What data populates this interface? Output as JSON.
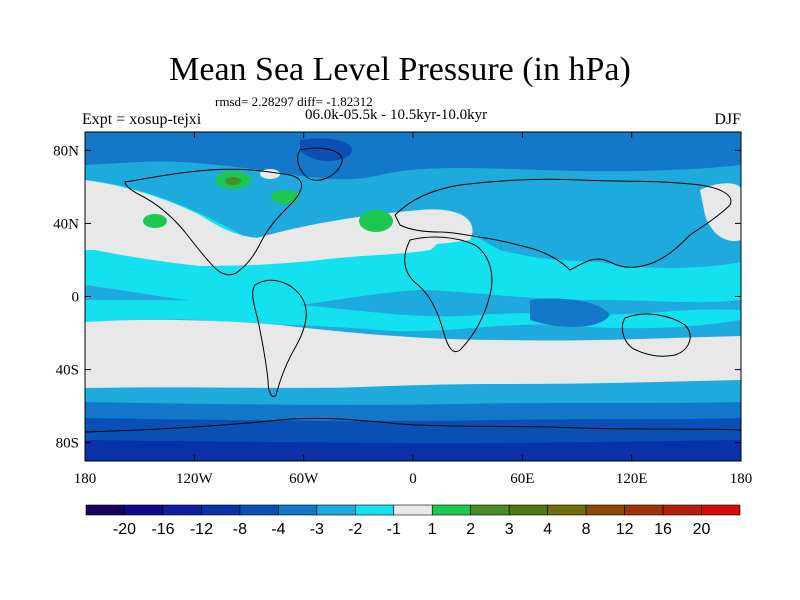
{
  "title": "Mean Sea Level Pressure (in hPa)",
  "stats_line": "rmsd= 2.28297 diff= -1.82312",
  "period_line": "06.0k-05.5k - 10.5kyr-10.0kyr",
  "experiment": "Expt = xosup-tejxi",
  "season": "DJF",
  "map": {
    "x_ticks": [
      "180",
      "120W",
      "60W",
      "0",
      "60E",
      "120E",
      "180"
    ],
    "y_ticks": [
      "80N",
      "40N",
      "0",
      "40S",
      "80S"
    ],
    "lon_range": [
      -180,
      180
    ],
    "lat_range": [
      -90,
      90
    ]
  },
  "colorbar": {
    "colors": [
      "#180060",
      "#0a0a8c",
      "#0f1ea0",
      "#0a32a8",
      "#0a50b4",
      "#1478c8",
      "#1eaadc",
      "#14e1f0",
      "#e8e8e8",
      "#1ec850",
      "#4b8c28",
      "#507814",
      "#6e6e0a",
      "#8c4b0a",
      "#a0320a",
      "#b41e0a",
      "#d20a0a"
    ],
    "labels": [
      "-20",
      "-16",
      "-12",
      "-8",
      "-4",
      "-3",
      "-2",
      "-1",
      "1",
      "2",
      "3",
      "4",
      "8",
      "12",
      "16",
      "20"
    ]
  }
}
